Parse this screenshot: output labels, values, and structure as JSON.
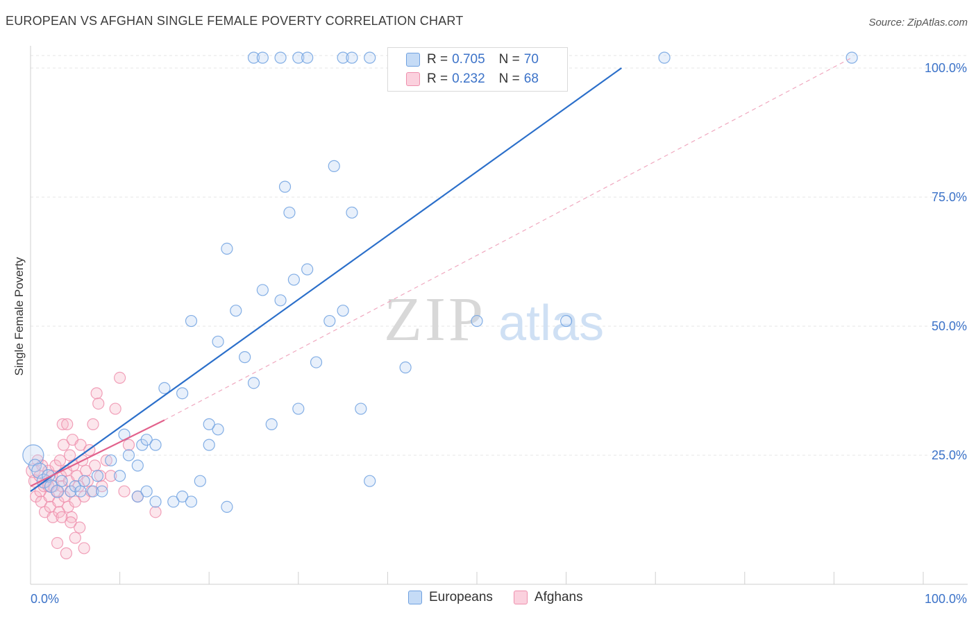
{
  "header": {
    "title": "EUROPEAN VS AFGHAN SINGLE FEMALE POVERTY CORRELATION CHART",
    "source": "Source: ZipAtlas.com"
  },
  "watermark": {
    "zip": "ZIP",
    "atlas": "atlas"
  },
  "legend": {
    "rows": [
      {
        "r_label": "R =",
        "r_value": "0.705",
        "n_label": "N =",
        "n_value": "70",
        "color": "#a8c8f0"
      },
      {
        "r_label": "R =",
        "r_value": "0.232",
        "n_label": "N =",
        "n_value": "68",
        "color": "#f7b6c8"
      }
    ]
  },
  "bottom_legend": {
    "europeans": "Europeans",
    "afghans": "Afghans"
  },
  "colors": {
    "blue": "#6fa1e0",
    "blue_line": "#2b6fca",
    "pink": "#ee8fad",
    "pink_line": "#e2628c",
    "axis_text": "#3b72c8",
    "grid": "#e4e4e4"
  },
  "chart_data": {
    "type": "scatter",
    "title": "EUROPEAN VS AFGHAN SINGLE FEMALE POVERTY CORRELATION CHART",
    "xlabel": "",
    "ylabel": "Single Female Poverty",
    "xlim": [
      0,
      100
    ],
    "ylim": [
      0,
      102
    ],
    "x_tick_labels": [
      "0.0%",
      "100.0%"
    ],
    "y_ticks": [
      25,
      50,
      75,
      100
    ],
    "y_tick_labels": [
      "25.0%",
      "50.0%",
      "75.0%",
      "100.0%"
    ],
    "series": [
      {
        "name": "Europeans",
        "r": 0.705,
        "n": 70,
        "trend": {
          "x0": 0,
          "y0": 18,
          "x1": 66.2,
          "y1": 100
        },
        "points": [
          [
            0.3,
            25,
            14
          ],
          [
            0.5,
            23,
            8
          ],
          [
            1.0,
            22,
            10
          ],
          [
            1.5,
            20,
            9
          ],
          [
            2.0,
            21,
            8
          ],
          [
            2.3,
            19,
            8
          ],
          [
            3.0,
            18,
            8
          ],
          [
            3.5,
            20,
            7
          ],
          [
            4.5,
            18,
            7
          ],
          [
            5.0,
            19,
            7
          ],
          [
            5.6,
            18,
            7
          ],
          [
            6.0,
            20,
            7
          ],
          [
            7.0,
            18,
            7
          ],
          [
            7.5,
            21,
            7
          ],
          [
            8.0,
            18,
            7
          ],
          [
            9.0,
            24,
            7
          ],
          [
            10.0,
            21,
            7
          ],
          [
            10.5,
            29,
            7
          ],
          [
            11.0,
            25,
            7
          ],
          [
            12.0,
            23,
            7
          ],
          [
            12.5,
            27,
            7
          ],
          [
            13.0,
            28,
            7
          ],
          [
            14.0,
            27,
            7
          ],
          [
            12.0,
            17,
            7
          ],
          [
            13.0,
            18,
            7
          ],
          [
            14.0,
            16,
            7
          ],
          [
            16.0,
            16,
            7
          ],
          [
            17.0,
            17,
            7
          ],
          [
            18.0,
            16,
            7
          ],
          [
            20.0,
            27,
            7
          ],
          [
            21.0,
            30,
            7
          ],
          [
            19.0,
            20,
            7
          ],
          [
            22.0,
            15,
            7
          ],
          [
            15.0,
            38,
            7
          ],
          [
            17.0,
            37,
            7
          ],
          [
            18.0,
            51,
            7
          ],
          [
            20.0,
            31,
            7
          ],
          [
            21.0,
            47,
            7
          ],
          [
            22.0,
            65,
            7
          ],
          [
            23.0,
            53,
            7
          ],
          [
            24.0,
            44,
            7
          ],
          [
            25.0,
            39,
            7
          ],
          [
            26.0,
            57,
            7
          ],
          [
            27.0,
            31,
            7
          ],
          [
            28.0,
            55,
            7
          ],
          [
            28.5,
            77,
            7
          ],
          [
            29.0,
            72,
            7
          ],
          [
            29.5,
            59,
            7
          ],
          [
            30.0,
            34,
            7
          ],
          [
            31.0,
            61,
            7
          ],
          [
            32.0,
            43,
            7
          ],
          [
            33.5,
            51,
            7
          ],
          [
            34.0,
            81,
            7
          ],
          [
            35.0,
            53,
            7
          ],
          [
            36.0,
            72,
            7
          ],
          [
            37.0,
            34,
            7
          ],
          [
            38.0,
            20,
            7
          ],
          [
            42.0,
            42,
            7
          ],
          [
            50.0,
            51,
            7
          ],
          [
            60.0,
            51,
            7
          ],
          [
            25.0,
            102,
            7
          ],
          [
            26.0,
            102,
            7
          ],
          [
            28.0,
            102,
            7
          ],
          [
            30.0,
            102,
            7
          ],
          [
            31.0,
            102,
            7
          ],
          [
            35.0,
            102,
            7
          ],
          [
            36.0,
            102,
            7
          ],
          [
            38.0,
            102,
            7
          ],
          [
            71.0,
            102,
            7
          ],
          [
            92.0,
            102,
            7
          ]
        ]
      },
      {
        "name": "Afghans",
        "r": 0.232,
        "n": 68,
        "trend": {
          "x0": 0,
          "y0": 19,
          "x1": 15,
          "y1": 31.8
        },
        "dashed_extension": {
          "x0": 15,
          "y0": 31.8,
          "x1": 92,
          "y1": 102
        },
        "points": [
          [
            0.3,
            22,
            9
          ],
          [
            0.5,
            20,
            8
          ],
          [
            0.6,
            17,
            7
          ],
          [
            0.8,
            24,
            7
          ],
          [
            1.0,
            21,
            7
          ],
          [
            1.1,
            18,
            7
          ],
          [
            1.2,
            16,
            7
          ],
          [
            1.3,
            23,
            7
          ],
          [
            1.5,
            19,
            7
          ],
          [
            1.6,
            14,
            7
          ],
          [
            1.8,
            20,
            7
          ],
          [
            2.0,
            22,
            7
          ],
          [
            2.1,
            17,
            7
          ],
          [
            2.2,
            15,
            7
          ],
          [
            2.4,
            21,
            7
          ],
          [
            2.5,
            13,
            7
          ],
          [
            2.6,
            19,
            7
          ],
          [
            2.8,
            23,
            7
          ],
          [
            3.0,
            18,
            7
          ],
          [
            3.1,
            16,
            7
          ],
          [
            3.2,
            14,
            7
          ],
          [
            3.3,
            24,
            7
          ],
          [
            3.4,
            21,
            7
          ],
          [
            3.5,
            19,
            7
          ],
          [
            3.6,
            31,
            7
          ],
          [
            3.7,
            27,
            7
          ],
          [
            3.8,
            17,
            7
          ],
          [
            4.0,
            22,
            7
          ],
          [
            4.1,
            31,
            7
          ],
          [
            4.2,
            15,
            7
          ],
          [
            4.3,
            20,
            7
          ],
          [
            4.4,
            25,
            7
          ],
          [
            4.5,
            18,
            7
          ],
          [
            4.6,
            13,
            7
          ],
          [
            4.7,
            28,
            7
          ],
          [
            4.8,
            23,
            7
          ],
          [
            5.0,
            16,
            7
          ],
          [
            5.2,
            21,
            7
          ],
          [
            5.4,
            19,
            7
          ],
          [
            5.6,
            27,
            7
          ],
          [
            5.8,
            24,
            7
          ],
          [
            6.0,
            17,
            7
          ],
          [
            6.2,
            22,
            7
          ],
          [
            6.4,
            20,
            7
          ],
          [
            6.6,
            26,
            7
          ],
          [
            6.8,
            18,
            7
          ],
          [
            7.0,
            31,
            7
          ],
          [
            7.2,
            23,
            7
          ],
          [
            7.4,
            37,
            7
          ],
          [
            7.6,
            35,
            7
          ],
          [
            7.8,
            21,
            7
          ],
          [
            8.0,
            19,
            7
          ],
          [
            8.5,
            24,
            7
          ],
          [
            9.0,
            21,
            7
          ],
          [
            9.5,
            34,
            7
          ],
          [
            10.0,
            40,
            7
          ],
          [
            10.5,
            18,
            7
          ],
          [
            11.0,
            27,
            7
          ],
          [
            12.0,
            17,
            7
          ],
          [
            14.0,
            14,
            7
          ],
          [
            3.0,
            8,
            7
          ],
          [
            4.0,
            6,
            7
          ],
          [
            5.0,
            9,
            7
          ],
          [
            5.5,
            11,
            7
          ],
          [
            6.0,
            7,
            7
          ],
          [
            3.5,
            13,
            7
          ],
          [
            4.5,
            12,
            7
          ],
          [
            2.0,
            19,
            7
          ]
        ]
      }
    ]
  }
}
